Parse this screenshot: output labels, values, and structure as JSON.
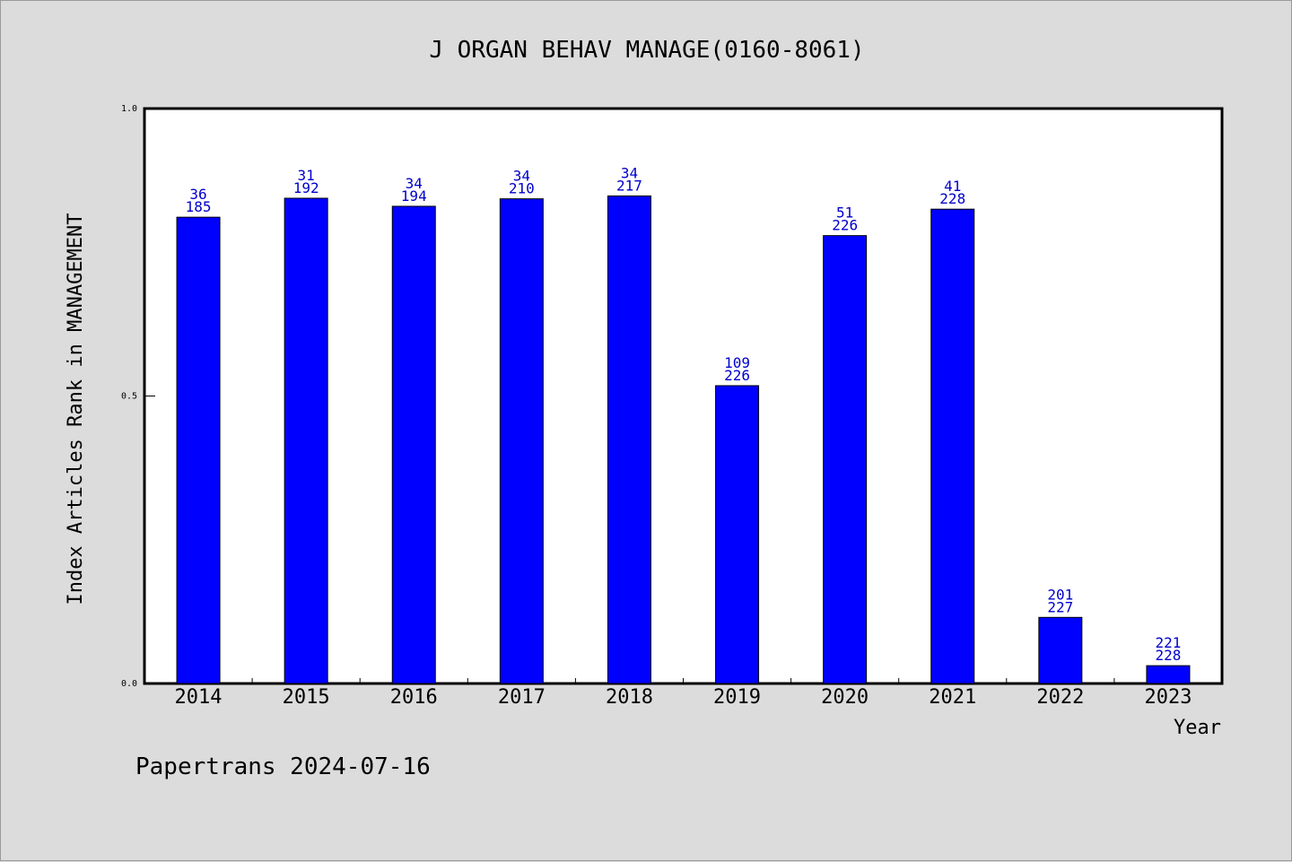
{
  "chart_data": {
    "type": "bar",
    "title": "J ORGAN BEHAV MANAGE(0160-8061)",
    "xlabel": "Year",
    "ylabel": "Index Articles Rank in MANAGEMENT",
    "ylim": [
      0.0,
      1.0
    ],
    "yticks": [
      "0.0",
      "0.5",
      "1.0"
    ],
    "categories": [
      "2014",
      "2015",
      "2016",
      "2017",
      "2018",
      "2019",
      "2020",
      "2021",
      "2022",
      "2023"
    ],
    "values": [
      0.811,
      0.844,
      0.83,
      0.843,
      0.848,
      0.518,
      0.779,
      0.825,
      0.115,
      0.031
    ],
    "rank": [
      "36",
      "31",
      "34",
      "34",
      "34",
      "109",
      "51",
      "41",
      "201",
      "221"
    ],
    "total": [
      "185",
      "192",
      "194",
      "210",
      "217",
      "226",
      "226",
      "228",
      "227",
      "228"
    ],
    "bar_color": "#0000ff",
    "label_color": "#0000cc",
    "grid": false,
    "legend": "none"
  },
  "footer": "Papertrans 2024-07-16"
}
